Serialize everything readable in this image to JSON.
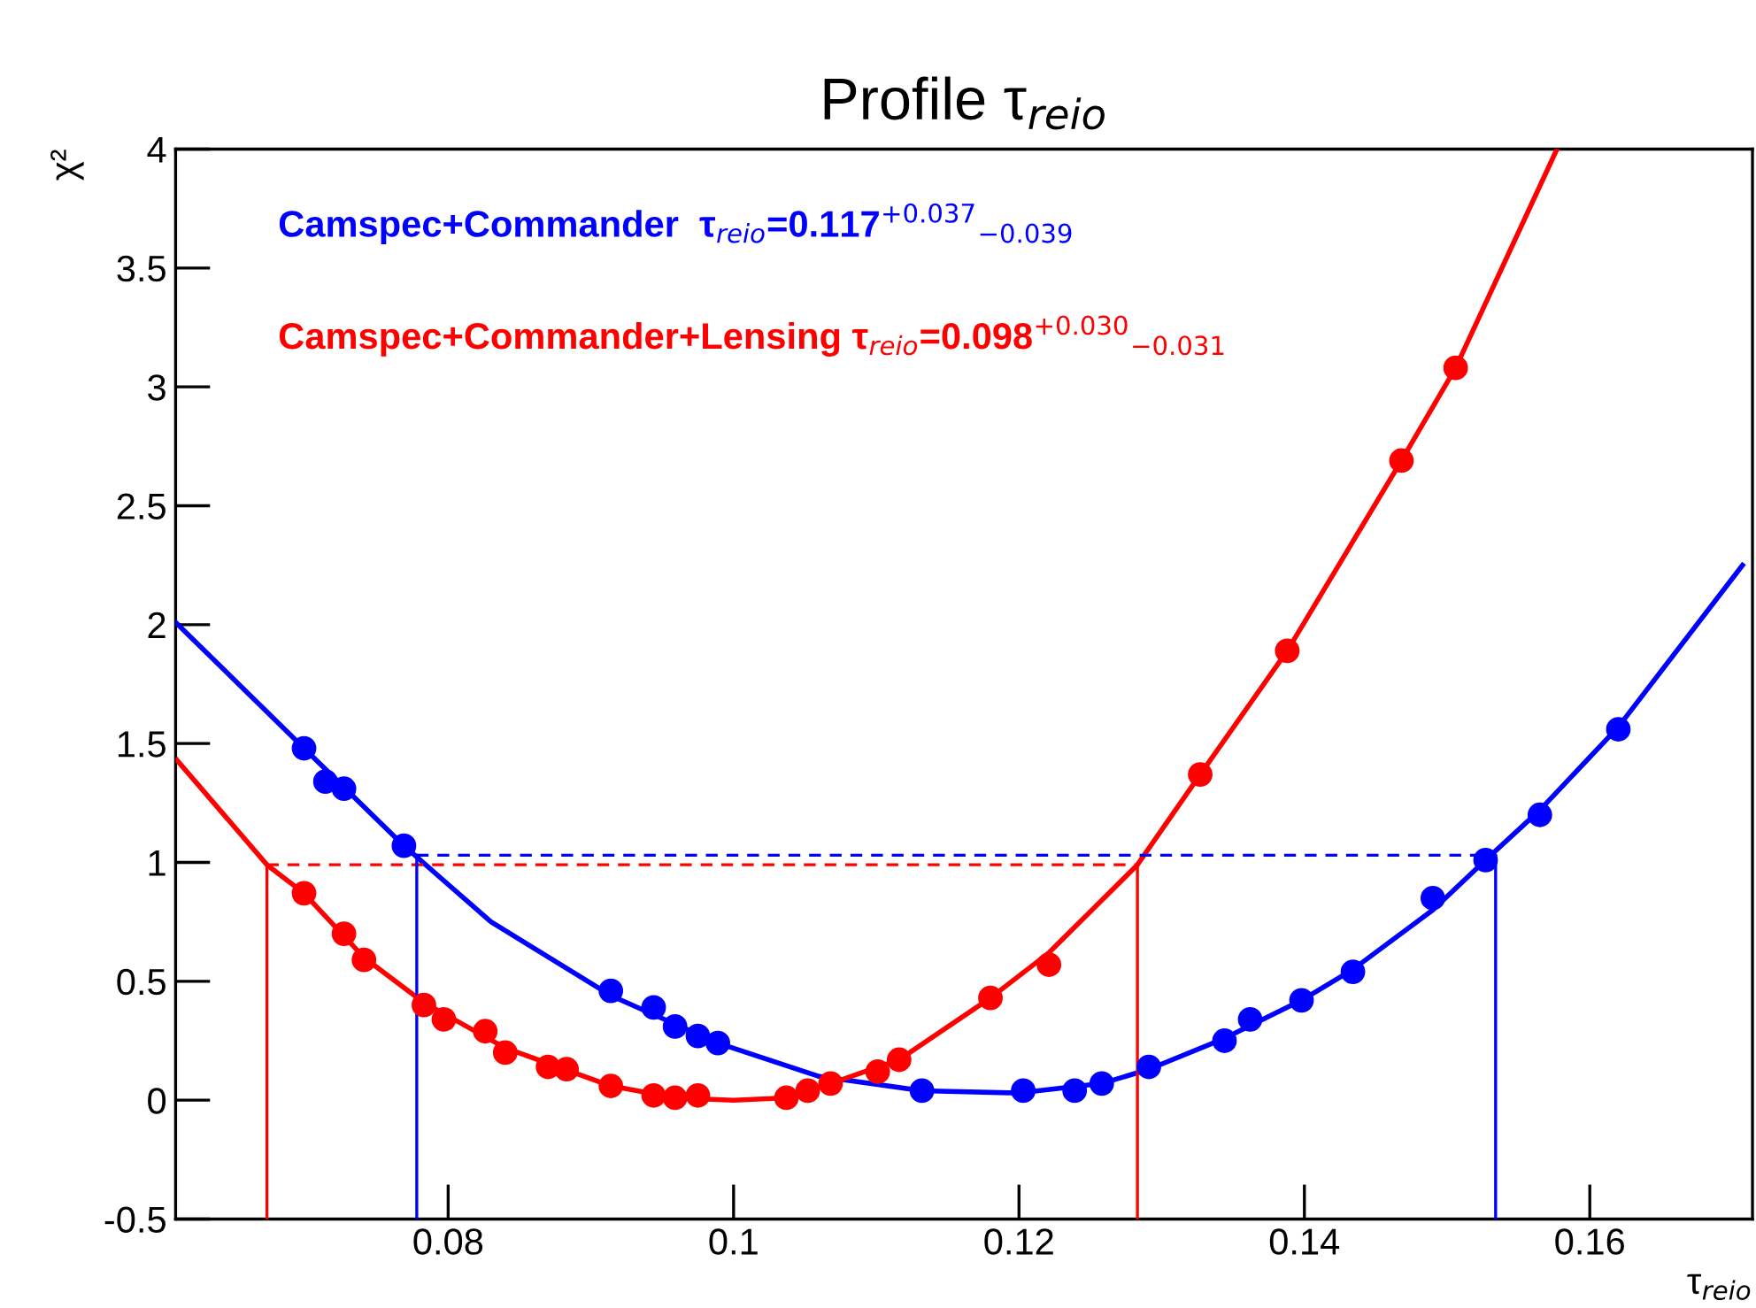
{
  "chart_data": {
    "type": "scatter",
    "title": "Profile τ$_{reio}$",
    "xlabel": "τ$_{reio}$",
    "ylabel": "χ²",
    "xlim": [
      0.0609,
      0.1714
    ],
    "xticks": [
      0.08,
      0.1,
      0.12,
      0.14,
      0.16
    ],
    "ylim": [
      -0.5,
      4
    ],
    "yticks": [
      {
        "value": -0.5,
        "label": "-0.5"
      },
      0,
      0.5,
      1,
      1.5,
      2,
      2.5,
      3,
      3.5,
      4
    ],
    "grid": false,
    "legend": false,
    "annotations": [
      "Camspec+Commander  τ$_{reio}$=0.117$^{+0.037}$$_{−0.039}$",
      "Camspec+Commander+Lensing τ$_{reio}$=0.098$^{+0.030}$$_{−0.031}$"
    ],
    "series": [
      {
        "marker": "circle",
        "color": "#0000ff",
        "x": [
          0.0699,
          0.0714,
          0.0727,
          0.0769,
          0.0914,
          0.0944,
          0.0959,
          0.0975,
          0.0989,
          0.1132,
          0.1203,
          0.1239,
          0.1258,
          0.1291,
          0.1344,
          0.1362,
          0.1398,
          0.1434,
          0.149,
          0.1527,
          0.1565,
          0.162
        ],
        "values": [
          1.48,
          1.34,
          1.31,
          1.07,
          0.46,
          0.39,
          0.31,
          0.27,
          0.24,
          0.04,
          0.04,
          0.04,
          0.07,
          0.14,
          0.25,
          0.34,
          0.42,
          0.54,
          0.85,
          1.01,
          1.2,
          1.56
        ]
      },
      {
        "marker": "circle",
        "color": "#ff0000",
        "x": [
          0.0699,
          0.0727,
          0.0741,
          0.0783,
          0.0797,
          0.0826,
          0.084,
          0.087,
          0.0883,
          0.0914,
          0.0944,
          0.0959,
          0.0975,
          0.1037,
          0.1052,
          0.1068,
          0.1101,
          0.1116,
          0.118,
          0.1221,
          0.1327,
          0.1388,
          0.1468,
          0.1506
        ],
        "values": [
          0.87,
          0.7,
          0.59,
          0.4,
          0.34,
          0.29,
          0.2,
          0.14,
          0.13,
          0.06,
          0.02,
          0.01,
          0.02,
          0.01,
          0.04,
          0.07,
          0.12,
          0.17,
          0.43,
          0.57,
          1.37,
          1.89,
          2.69,
          3.08
        ]
      },
      {
        "type": "line",
        "color": "#0000ff",
        "line_style": "solid",
        "x": [
          0.0609,
          0.0699,
          0.0769,
          0.083,
          0.0914,
          0.0989,
          0.106,
          0.1132,
          0.12,
          0.1258,
          0.1291,
          0.1344,
          0.1398,
          0.1434,
          0.149,
          0.1527,
          0.1565,
          0.162,
          0.1707
        ],
        "values": [
          2.01,
          1.48,
          1.07,
          0.75,
          0.44,
          0.24,
          0.1,
          0.04,
          0.03,
          0.07,
          0.13,
          0.26,
          0.42,
          0.55,
          0.8,
          1.01,
          1.22,
          1.57,
          2.25
        ]
      },
      {
        "type": "line",
        "color": "#ff0000",
        "line_style": "solid",
        "x": [
          0.061,
          0.0673,
          0.0699,
          0.0741,
          0.0783,
          0.084,
          0.0914,
          0.0959,
          0.1,
          0.1037,
          0.1068,
          0.1116,
          0.118,
          0.1221,
          0.1283,
          0.1327,
          0.1388,
          0.1468,
          0.1506,
          0.1577
        ],
        "values": [
          1.43,
          0.99,
          0.87,
          0.6,
          0.41,
          0.22,
          0.06,
          0.01,
          0.0,
          0.01,
          0.07,
          0.17,
          0.43,
          0.62,
          0.99,
          1.37,
          1.89,
          2.69,
          3.08,
          4.0
        ]
      },
      {
        "type": "line",
        "color": "#0000ff",
        "line_style": "dashed",
        "x": [
          0.0778,
          0.1534
        ],
        "values": [
          1.03,
          1.03
        ]
      },
      {
        "type": "line",
        "color": "#ff0000",
        "line_style": "dashed",
        "x": [
          0.0673,
          0.1283
        ],
        "values": [
          0.99,
          0.99
        ]
      },
      {
        "type": "line",
        "color": "#0000ff",
        "line_style": "solid",
        "x": [
          0.0778,
          0.0778
        ],
        "values": [
          -0.5,
          1.03
        ]
      },
      {
        "type": "line",
        "color": "#0000ff",
        "line_style": "solid",
        "x": [
          0.1534,
          0.1534
        ],
        "values": [
          -0.5,
          1.03
        ]
      },
      {
        "type": "line",
        "color": "#ff0000",
        "line_style": "solid",
        "x": [
          0.0673,
          0.0673
        ],
        "values": [
          -0.5,
          0.99
        ]
      },
      {
        "type": "line",
        "color": "#ff0000",
        "line_style": "solid",
        "x": [
          0.1283,
          0.1283
        ],
        "values": [
          -0.5,
          0.99
        ]
      }
    ]
  }
}
